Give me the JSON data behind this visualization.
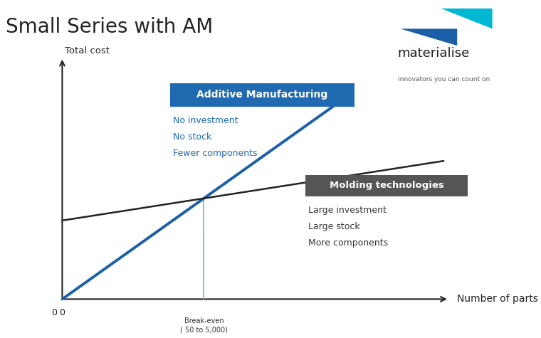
{
  "title": "Small Series with AM",
  "title_fontsize": 20,
  "title_color": "#222222",
  "background_color": "#ffffff",
  "xlabel": "Number of parts",
  "ylabel": "Total cost",
  "am_line_color": "#1a5fa8",
  "am_line_lw": 2.8,
  "mold_line_color": "#222222",
  "mold_line_lw": 1.8,
  "breakeven_color": "#7ab0d8",
  "breakeven_lw": 1.2,
  "breakeven_label": "Break-even\n( 50 to 5,000)",
  "am_box_text": "Additive Manufacturing",
  "am_box_color": "#1f6ab0",
  "am_box_text_color": "#ffffff",
  "am_notes": [
    "No investment",
    "No stock",
    "Fewer components"
  ],
  "am_notes_color": "#1f6ab0",
  "mold_box_text": "Molding technologies",
  "mold_box_color": "#555555",
  "mold_box_text_color": "#ffffff",
  "mold_notes": [
    "Large investment",
    "Large stock",
    "More components"
  ],
  "mold_notes_color": "#333333",
  "materialise_text": "materialise",
  "materialise_sub": "innovators you can count on",
  "logo_dark_color": "#1a5fa8",
  "logo_light_color": "#00b8d4",
  "axis_color": "#222222",
  "axis_lw": 1.5,
  "arrow_mutation_scale": 12
}
